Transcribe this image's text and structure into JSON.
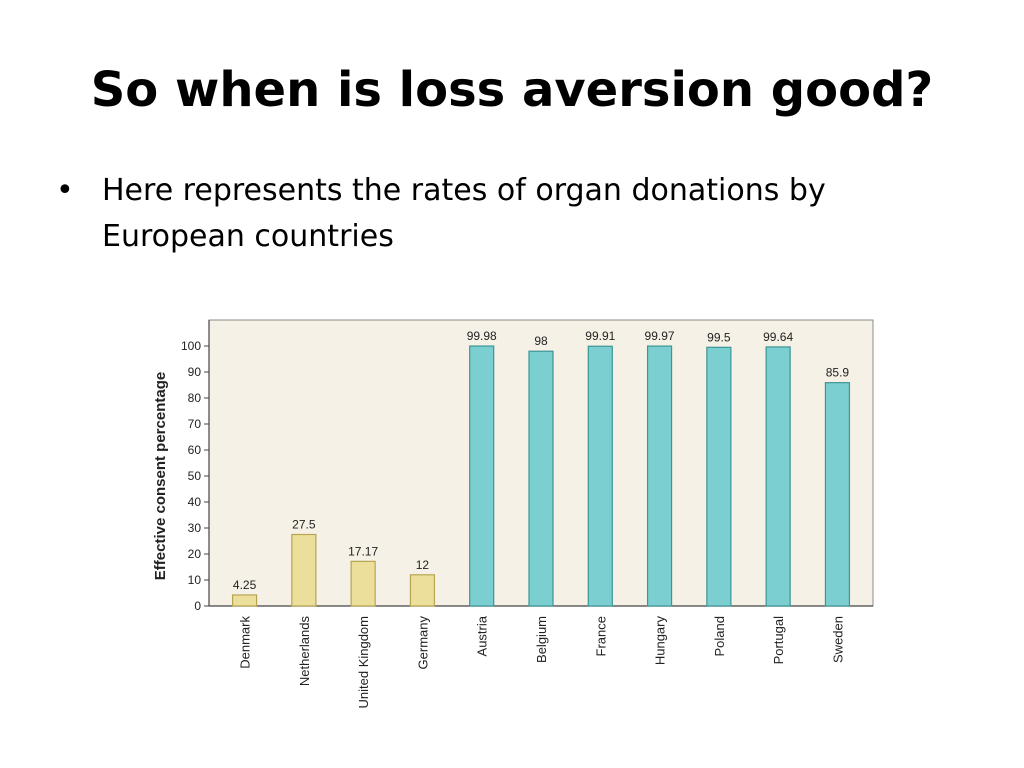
{
  "slide": {
    "title": "So when is loss aversion good?",
    "bullet_symbol": "•",
    "bullet_text": "Here represents the rates of organ donations by European countries"
  },
  "colors": {
    "plot_background": "#f6f1e6",
    "low_bar": "#ecdf9c",
    "low_bar_edge": "#b6a550",
    "high_bar": "#7ccfd0",
    "high_bar_edge": "#3c9596"
  },
  "chart_data": {
    "type": "bar",
    "title": "",
    "xlabel": "",
    "ylabel": "Effective consent percentage",
    "ylim": [
      0,
      110
    ],
    "yticks": [
      0,
      10,
      20,
      30,
      40,
      50,
      60,
      70,
      80,
      90,
      100
    ],
    "categories": [
      "Denmark",
      "Netherlands",
      "United Kingdom",
      "Germany",
      "Austria",
      "Belgium",
      "France",
      "Hungary",
      "Poland",
      "Portugal",
      "Sweden"
    ],
    "values": [
      4.25,
      27.5,
      17.17,
      12,
      99.98,
      98,
      99.91,
      99.97,
      99.5,
      99.64,
      85.9
    ],
    "value_labels": [
      "4.25",
      "27.5",
      "17.17",
      "12",
      "99.98",
      "98",
      "99.91",
      "99.97",
      "99.5",
      "99.64",
      "85.9"
    ],
    "bar_groups": [
      "low",
      "low",
      "low",
      "low",
      "high",
      "high",
      "high",
      "high",
      "high",
      "high",
      "high"
    ],
    "grid": false,
    "legend": "none"
  }
}
